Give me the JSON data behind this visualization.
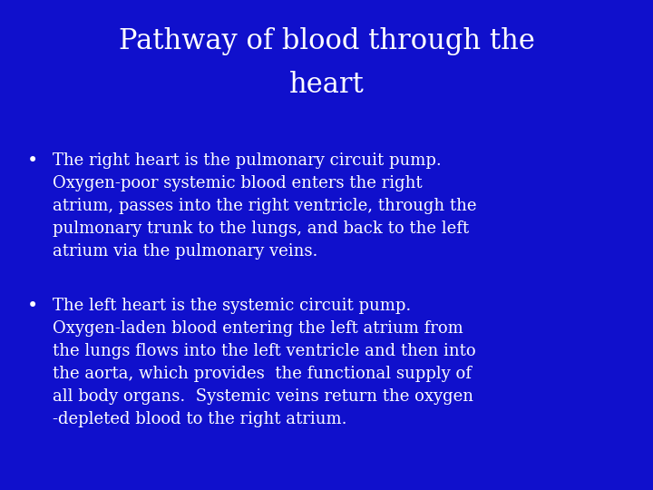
{
  "title_line1": "Pathway of blood through the",
  "title_line2": "heart",
  "bullet1": "The right heart is the pulmonary circuit pump.\nOxygen-poor systemic blood enters the right\natrium, passes into the right ventricle, through the\npulmonary trunk to the lungs, and back to the left\natrium via the pulmonary veins.",
  "bullet2": "The left heart is the systemic circuit pump.\nOxygen-laden blood entering the left atrium from\nthe lungs flows into the left ventricle and then into\nthe aorta, which provides  the functional supply of\nall body organs.  Systemic veins return the oxygen\n-depleted blood to the right atrium.",
  "bg_color": "#1010CC",
  "text_color": "#FFFFFF",
  "title_fontsize": 22,
  "body_fontsize": 13
}
